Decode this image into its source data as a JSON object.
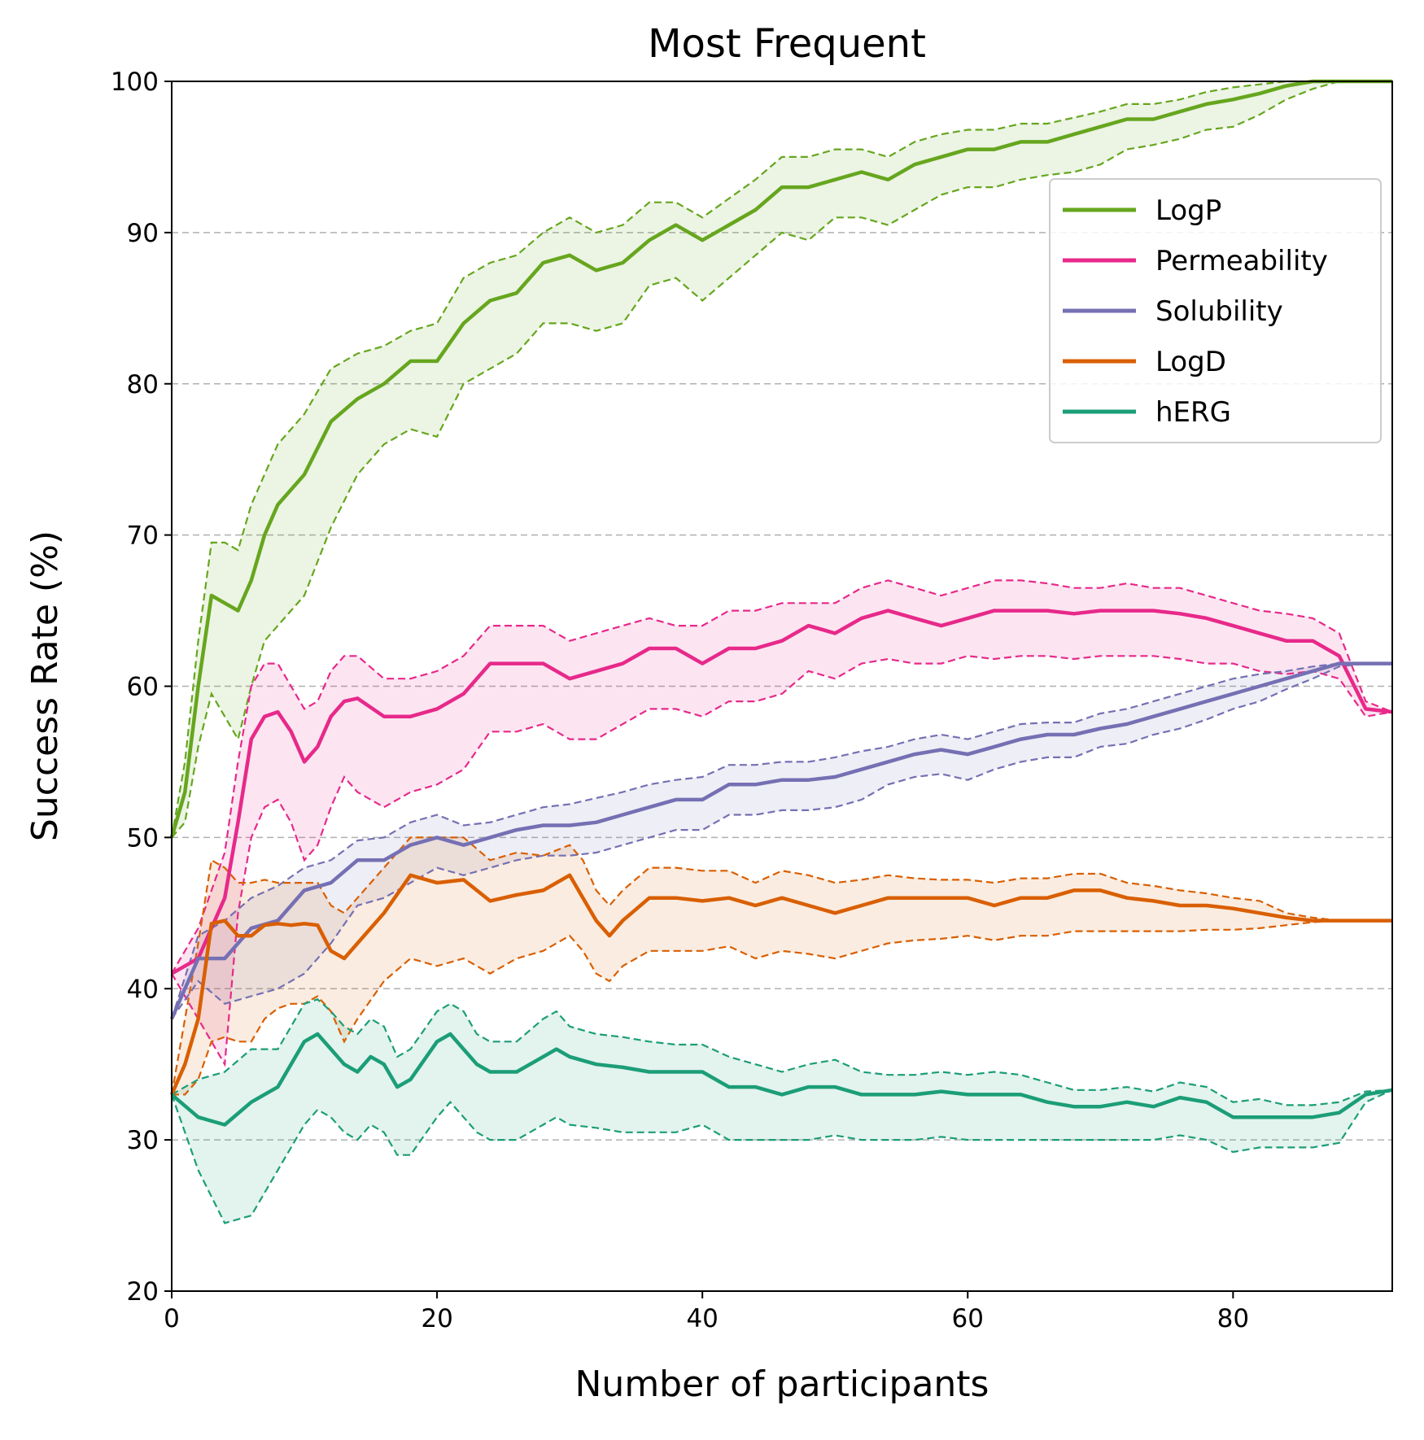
{
  "chart_data": {
    "type": "line",
    "title": "Most Frequent",
    "xlabel": "Number of participants",
    "ylabel": "Success Rate (%)",
    "xlim": [
      0,
      92
    ],
    "ylim": [
      20,
      100
    ],
    "xticks": [
      0,
      20,
      40,
      60,
      80
    ],
    "yticks": [
      20,
      30,
      40,
      50,
      60,
      70,
      80,
      90,
      100
    ],
    "grid": "horizontal dashed",
    "legend_position": "upper-right",
    "series": [
      {
        "name": "LogP",
        "color": "#66a61e",
        "x": [
          0,
          1,
          2,
          3,
          4,
          5,
          6,
          7,
          8,
          10,
          12,
          14,
          16,
          18,
          20,
          22,
          24,
          26,
          28,
          30,
          32,
          34,
          36,
          38,
          40,
          44,
          46,
          48,
          50,
          52,
          54,
          56,
          58,
          60,
          62,
          64,
          66,
          68,
          70,
          72,
          74,
          76,
          78,
          80,
          82,
          84,
          86,
          88,
          90,
          92
        ],
        "mean": [
          50,
          53,
          60,
          66,
          65.5,
          65,
          67,
          70,
          72,
          74,
          77.5,
          79,
          80,
          81.5,
          81.5,
          84,
          85.5,
          86,
          88,
          88.5,
          87.5,
          88,
          89.5,
          90.5,
          89.5,
          91.5,
          93,
          93,
          93.5,
          94,
          93.5,
          94.5,
          95,
          95.5,
          95.5,
          96,
          96,
          96.5,
          97,
          97.5,
          97.5,
          98,
          98.5,
          98.8,
          99.2,
          99.7,
          100,
          100,
          100,
          100
        ],
        "upper": [
          50,
          55,
          63,
          69.5,
          69.5,
          69,
          72,
          74,
          76,
          78,
          81,
          82,
          82.5,
          83.5,
          84,
          87,
          88,
          88.5,
          90,
          91,
          90,
          90.5,
          92,
          92,
          91,
          93.5,
          95,
          95,
          95.5,
          95.5,
          95,
          96,
          96.5,
          96.8,
          96.8,
          97.2,
          97.2,
          97.6,
          98,
          98.5,
          98.5,
          98.8,
          99.3,
          99.6,
          99.8,
          100,
          100,
          100,
          100,
          100
        ],
        "lower": [
          50,
          51,
          56,
          59.5,
          58,
          56.5,
          60,
          63,
          64,
          66,
          70.5,
          74,
          76,
          77,
          76.5,
          80,
          81,
          82,
          84,
          84,
          83.5,
          84,
          86.5,
          87,
          85.5,
          88.5,
          90,
          89.5,
          91,
          91,
          90.5,
          91.5,
          92.5,
          93,
          93,
          93.5,
          93.8,
          94,
          94.5,
          95.5,
          95.8,
          96.2,
          96.8,
          97,
          97.8,
          98.8,
          99.5,
          100,
          100,
          100
        ]
      },
      {
        "name": "Permeability",
        "color": "#e7298a",
        "x": [
          0,
          2,
          4,
          5,
          6,
          7,
          8,
          9,
          10,
          11,
          12,
          13,
          14,
          16,
          18,
          20,
          22,
          24,
          26,
          28,
          30,
          32,
          34,
          36,
          38,
          40,
          42,
          44,
          46,
          48,
          50,
          52,
          54,
          56,
          58,
          60,
          62,
          64,
          66,
          68,
          70,
          72,
          74,
          76,
          78,
          80,
          82,
          84,
          86,
          88,
          90,
          92
        ],
        "mean": [
          41,
          42,
          46,
          51,
          56.5,
          58,
          58.3,
          57,
          55,
          56,
          58,
          59,
          59.2,
          58,
          58,
          58.5,
          59.5,
          61.5,
          61.5,
          61.5,
          60.5,
          61,
          61.5,
          62.5,
          62.5,
          61.5,
          62.5,
          62.5,
          63,
          64,
          63.5,
          64.5,
          65,
          64.5,
          64,
          64.5,
          65,
          65,
          65,
          64.8,
          65,
          65,
          65,
          64.8,
          64.5,
          64,
          63.5,
          63,
          63,
          62,
          58.5,
          58.3
        ],
        "upper": [
          41,
          44,
          49,
          55,
          60,
          61.5,
          61.5,
          60,
          58.5,
          59,
          61,
          62,
          62,
          60.5,
          60.5,
          61,
          62,
          64,
          64,
          64,
          63,
          63.5,
          64,
          64.5,
          64,
          64,
          65,
          65,
          65.5,
          65.5,
          65.5,
          66.5,
          67,
          66.5,
          66,
          66.5,
          67,
          67,
          66.8,
          66.5,
          66.5,
          66.8,
          66.5,
          66.5,
          66,
          65.5,
          65,
          64.8,
          64.5,
          63.5,
          59,
          58.3
        ],
        "lower": [
          41,
          38,
          35,
          45,
          50,
          52,
          52.5,
          51,
          48.5,
          49.5,
          52,
          54,
          53,
          52,
          53,
          53.5,
          54.5,
          57,
          57,
          57.5,
          56.5,
          56.5,
          57.5,
          58.5,
          58.5,
          58,
          59,
          59,
          59.5,
          61,
          60.5,
          61.5,
          61.8,
          61.5,
          61.5,
          62,
          61.8,
          62,
          62,
          61.8,
          62,
          62,
          62,
          61.8,
          61.5,
          61.5,
          61,
          60.8,
          61,
          60.5,
          58,
          58.3
        ]
      },
      {
        "name": "Solubility",
        "color": "#7570b3",
        "x": [
          0,
          2,
          4,
          6,
          8,
          10,
          12,
          14,
          16,
          18,
          20,
          22,
          24,
          26,
          28,
          30,
          32,
          34,
          36,
          38,
          40,
          42,
          44,
          46,
          48,
          50,
          52,
          54,
          56,
          58,
          60,
          62,
          64,
          66,
          68,
          70,
          72,
          74,
          76,
          78,
          80,
          82,
          84,
          86,
          88,
          90,
          92
        ],
        "mean": [
          38,
          42,
          42,
          44,
          44.5,
          46.5,
          47,
          48.5,
          48.5,
          49.5,
          50,
          49.5,
          50,
          50.5,
          50.8,
          50.8,
          51,
          51.5,
          52,
          52.5,
          52.5,
          53.5,
          53.5,
          53.8,
          53.8,
          54,
          54.5,
          55,
          55.5,
          55.8,
          55.5,
          56,
          56.5,
          56.8,
          56.8,
          57.2,
          57.5,
          58,
          58.5,
          59,
          59.5,
          60,
          60.5,
          61,
          61.5,
          61.5,
          61.5
        ],
        "upper": [
          38,
          43.5,
          44.5,
          46,
          46.8,
          48,
          48.5,
          49.8,
          50,
          51,
          51.5,
          50.8,
          51,
          51.5,
          52,
          52.2,
          52.6,
          53,
          53.5,
          53.8,
          54,
          54.8,
          54.8,
          55,
          55,
          55.3,
          55.7,
          56,
          56.5,
          56.8,
          56.5,
          57,
          57.5,
          57.6,
          57.6,
          58.2,
          58.5,
          59,
          59.5,
          60,
          60.5,
          60.8,
          61,
          61.3,
          61.5,
          61.5,
          61.5
        ],
        "lower": [
          38,
          40.5,
          39,
          39.5,
          40,
          41,
          43,
          45.5,
          46,
          47,
          48,
          47.5,
          48,
          48.5,
          48.8,
          48.8,
          49,
          49.5,
          50,
          50.5,
          50.5,
          51.5,
          51.5,
          51.8,
          51.8,
          52,
          52.5,
          53.5,
          54,
          54.2,
          53.8,
          54.5,
          55,
          55.3,
          55.3,
          56,
          56.2,
          56.8,
          57.2,
          57.8,
          58.5,
          59,
          59.8,
          60.5,
          61.3,
          61.5,
          61.5
        ]
      },
      {
        "name": "LogD",
        "color": "#d95f02",
        "x": [
          0,
          1,
          2,
          3,
          4,
          5,
          6,
          7,
          8,
          9,
          10,
          11,
          12,
          13,
          14,
          16,
          18,
          20,
          22,
          24,
          26,
          28,
          30,
          31,
          32,
          33,
          34,
          36,
          38,
          40,
          42,
          44,
          46,
          48,
          50,
          52,
          54,
          56,
          58,
          60,
          62,
          64,
          66,
          68,
          70,
          72,
          74,
          76,
          78,
          80,
          82,
          84,
          86,
          88,
          90,
          92
        ],
        "mean": [
          33,
          35,
          38,
          44.3,
          44.5,
          43.5,
          43.5,
          44.2,
          44.3,
          44.2,
          44.3,
          44.2,
          42.5,
          42,
          43,
          45,
          47.5,
          47,
          47.2,
          45.8,
          46.2,
          46.5,
          47.5,
          46,
          44.5,
          43.5,
          44.5,
          46,
          46,
          45.8,
          46,
          45.5,
          46,
          45.5,
          45,
          45.5,
          46,
          46,
          46,
          46,
          45.5,
          46,
          46,
          46.5,
          46.5,
          46,
          45.8,
          45.5,
          45.5,
          45.3,
          45,
          44.7,
          44.5,
          44.5,
          44.5,
          44.5
        ],
        "upper": [
          33,
          38,
          43,
          48.5,
          48,
          47,
          47,
          47.2,
          47,
          47,
          47,
          47,
          45.5,
          45,
          46,
          48,
          50,
          50,
          50,
          48.5,
          49,
          48.8,
          49.5,
          48.5,
          46.5,
          45.5,
          46.5,
          48,
          48,
          47.8,
          47.8,
          47,
          47.8,
          47.5,
          47,
          47.2,
          47.5,
          47.3,
          47.2,
          47.2,
          47,
          47.3,
          47.3,
          47.6,
          47.6,
          47,
          46.8,
          46.5,
          46.3,
          46,
          45.8,
          45,
          44.7,
          44.5,
          44.5,
          44.5
        ],
        "lower": [
          33,
          33,
          34,
          36.5,
          36.8,
          36.5,
          36.5,
          38,
          38.7,
          39,
          39,
          39.5,
          38.5,
          36.5,
          38,
          40.5,
          42,
          41.5,
          42,
          41,
          42,
          42.5,
          43.5,
          42.5,
          41,
          40.5,
          41.5,
          42.5,
          42.5,
          42.5,
          42.8,
          42,
          42.5,
          42.3,
          42,
          42.5,
          43,
          43.2,
          43.3,
          43.5,
          43.2,
          43.5,
          43.5,
          43.8,
          43.8,
          43.8,
          43.8,
          43.8,
          43.9,
          43.9,
          44,
          44.2,
          44.4,
          44.5,
          44.5,
          44.5
        ]
      },
      {
        "name": "hERG",
        "color": "#1b9e77",
        "x": [
          0,
          2,
          4,
          6,
          8,
          10,
          11,
          12,
          13,
          14,
          15,
          16,
          17,
          18,
          20,
          21,
          22,
          23,
          24,
          26,
          28,
          29,
          30,
          32,
          34,
          36,
          38,
          40,
          42,
          44,
          46,
          48,
          50,
          52,
          54,
          56,
          58,
          60,
          62,
          64,
          66,
          68,
          70,
          72,
          74,
          76,
          78,
          80,
          82,
          84,
          86,
          88,
          90,
          92
        ],
        "mean": [
          33,
          31.5,
          31,
          32.5,
          33.5,
          36.5,
          37,
          36,
          35,
          34.5,
          35.5,
          35,
          33.5,
          34,
          36.5,
          37,
          36,
          35,
          34.5,
          34.5,
          35.5,
          36,
          35.5,
          35,
          34.8,
          34.5,
          34.5,
          34.5,
          33.5,
          33.5,
          33,
          33.5,
          33.5,
          33,
          33,
          33,
          33.2,
          33,
          33,
          33,
          32.5,
          32.2,
          32.2,
          32.5,
          32.2,
          32.8,
          32.5,
          31.5,
          31.5,
          31.5,
          31.5,
          31.8,
          33,
          33.3
        ],
        "upper": [
          33,
          34,
          34.5,
          36,
          36,
          39,
          39.3,
          38.5,
          37.5,
          37,
          38,
          37.5,
          35.5,
          36,
          38.5,
          39,
          38.5,
          37,
          36.5,
          36.5,
          38,
          38.5,
          37.5,
          37,
          36.8,
          36.5,
          36.3,
          36.3,
          35.5,
          35,
          34.5,
          35,
          35.3,
          34.5,
          34.3,
          34.3,
          34.5,
          34.3,
          34.5,
          34.3,
          33.8,
          33.3,
          33.3,
          33.5,
          33.2,
          33.8,
          33.5,
          32.5,
          32.7,
          32.3,
          32.3,
          32.5,
          33.2,
          33.3
        ],
        "lower": [
          33,
          28,
          24.5,
          25,
          28,
          31,
          32,
          31.5,
          30.5,
          30,
          31,
          30.5,
          29,
          29,
          31.5,
          32.5,
          31.5,
          30.5,
          30,
          30,
          31,
          31.5,
          31,
          30.8,
          30.5,
          30.5,
          30.5,
          31,
          30,
          30,
          30,
          30,
          30.3,
          30,
          30,
          30,
          30.2,
          30,
          30,
          30,
          30,
          30,
          30,
          30,
          30,
          30.3,
          30,
          29.2,
          29.5,
          29.5,
          29.5,
          29.8,
          32.5,
          33.3
        ]
      }
    ]
  }
}
